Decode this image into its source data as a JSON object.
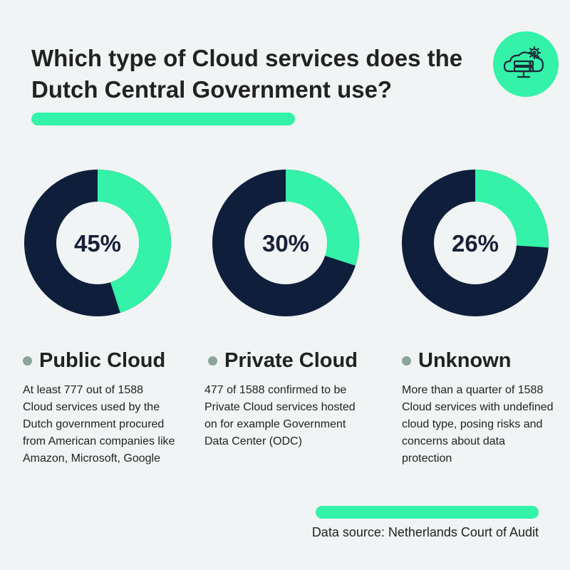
{
  "header": {
    "title": "Which type of Cloud services does the Dutch Central Government use?"
  },
  "icons": {
    "badge": "cloud-server-gear-icon"
  },
  "colors": {
    "accent": "#34f2a8",
    "dark": "#0f1f3b",
    "dot": "#8aa69c",
    "background": "#f1f4f4"
  },
  "chart_data": [
    {
      "type": "pie",
      "label": "45%",
      "value": 45,
      "category": "Public Cloud",
      "description": "At least 777 out of 1588 Cloud services used by the Dutch government procured from American companies like Amazon, Microsoft, Google"
    },
    {
      "type": "pie",
      "label": "30%",
      "value": 30,
      "category": "Private Cloud",
      "description": "477 of 1588 confirmed to be Private Cloud services hosted on for example Government Data Center (ODC)"
    },
    {
      "type": "pie",
      "label": "26%",
      "value": 26,
      "category": "Unknown",
      "description": "More than a quarter of 1588 Cloud services with undefined cloud type, posing risks and concerns about data protection"
    }
  ],
  "footer": {
    "source": "Data source: Netherlands Court of Audit"
  }
}
